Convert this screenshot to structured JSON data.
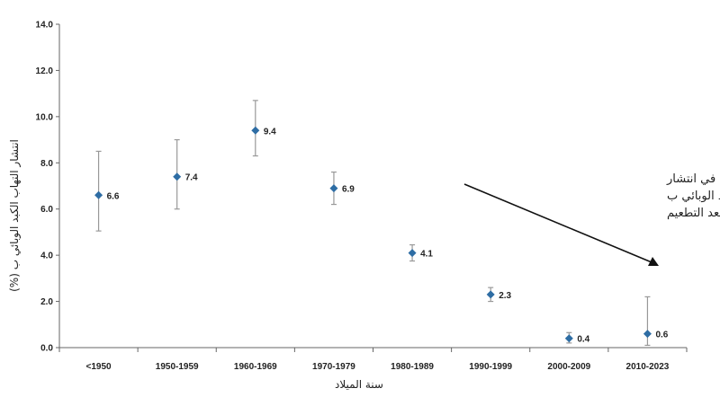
{
  "chart_data": {
    "type": "scatter",
    "title": "",
    "xlabel": "سنة الميلاد",
    "ylabel": "انتشار التهاب الكبد الوبائي ب (%)",
    "categories": [
      "<1950",
      "1950-1959",
      "1960-1969",
      "1970-1979",
      "1980-1989",
      "1990-1999",
      "2000-2009",
      "2010-2023"
    ],
    "values": [
      6.6,
      7.4,
      9.4,
      6.9,
      4.1,
      2.3,
      0.4,
      0.6
    ],
    "error_low": [
      5.05,
      6.0,
      8.3,
      6.2,
      3.75,
      2.0,
      0.2,
      0.1
    ],
    "error_high": [
      8.5,
      9.0,
      10.7,
      7.6,
      4.45,
      2.6,
      0.65,
      2.2
    ],
    "value_labels": [
      "6.6",
      "7.4",
      "9.4",
      "6.9",
      "4.1",
      "2.3",
      "0.4",
      "0.6"
    ],
    "ylim": [
      0,
      14
    ],
    "yticks": [
      "0.0",
      "2.0",
      "4.0",
      "6.0",
      "8.0",
      "10.0",
      "12.0",
      "14.0"
    ],
    "grid": false,
    "legend": "none",
    "annotation_lines": [
      "انخفاض سريع في انتشار",
      "التهاب الكبد الوبائي ب",
      "بعد التطعيم"
    ],
    "colors": {
      "marker": "#2e6da4",
      "errorbar": "#999999",
      "axis": "#666666",
      "text": "#222222"
    }
  }
}
